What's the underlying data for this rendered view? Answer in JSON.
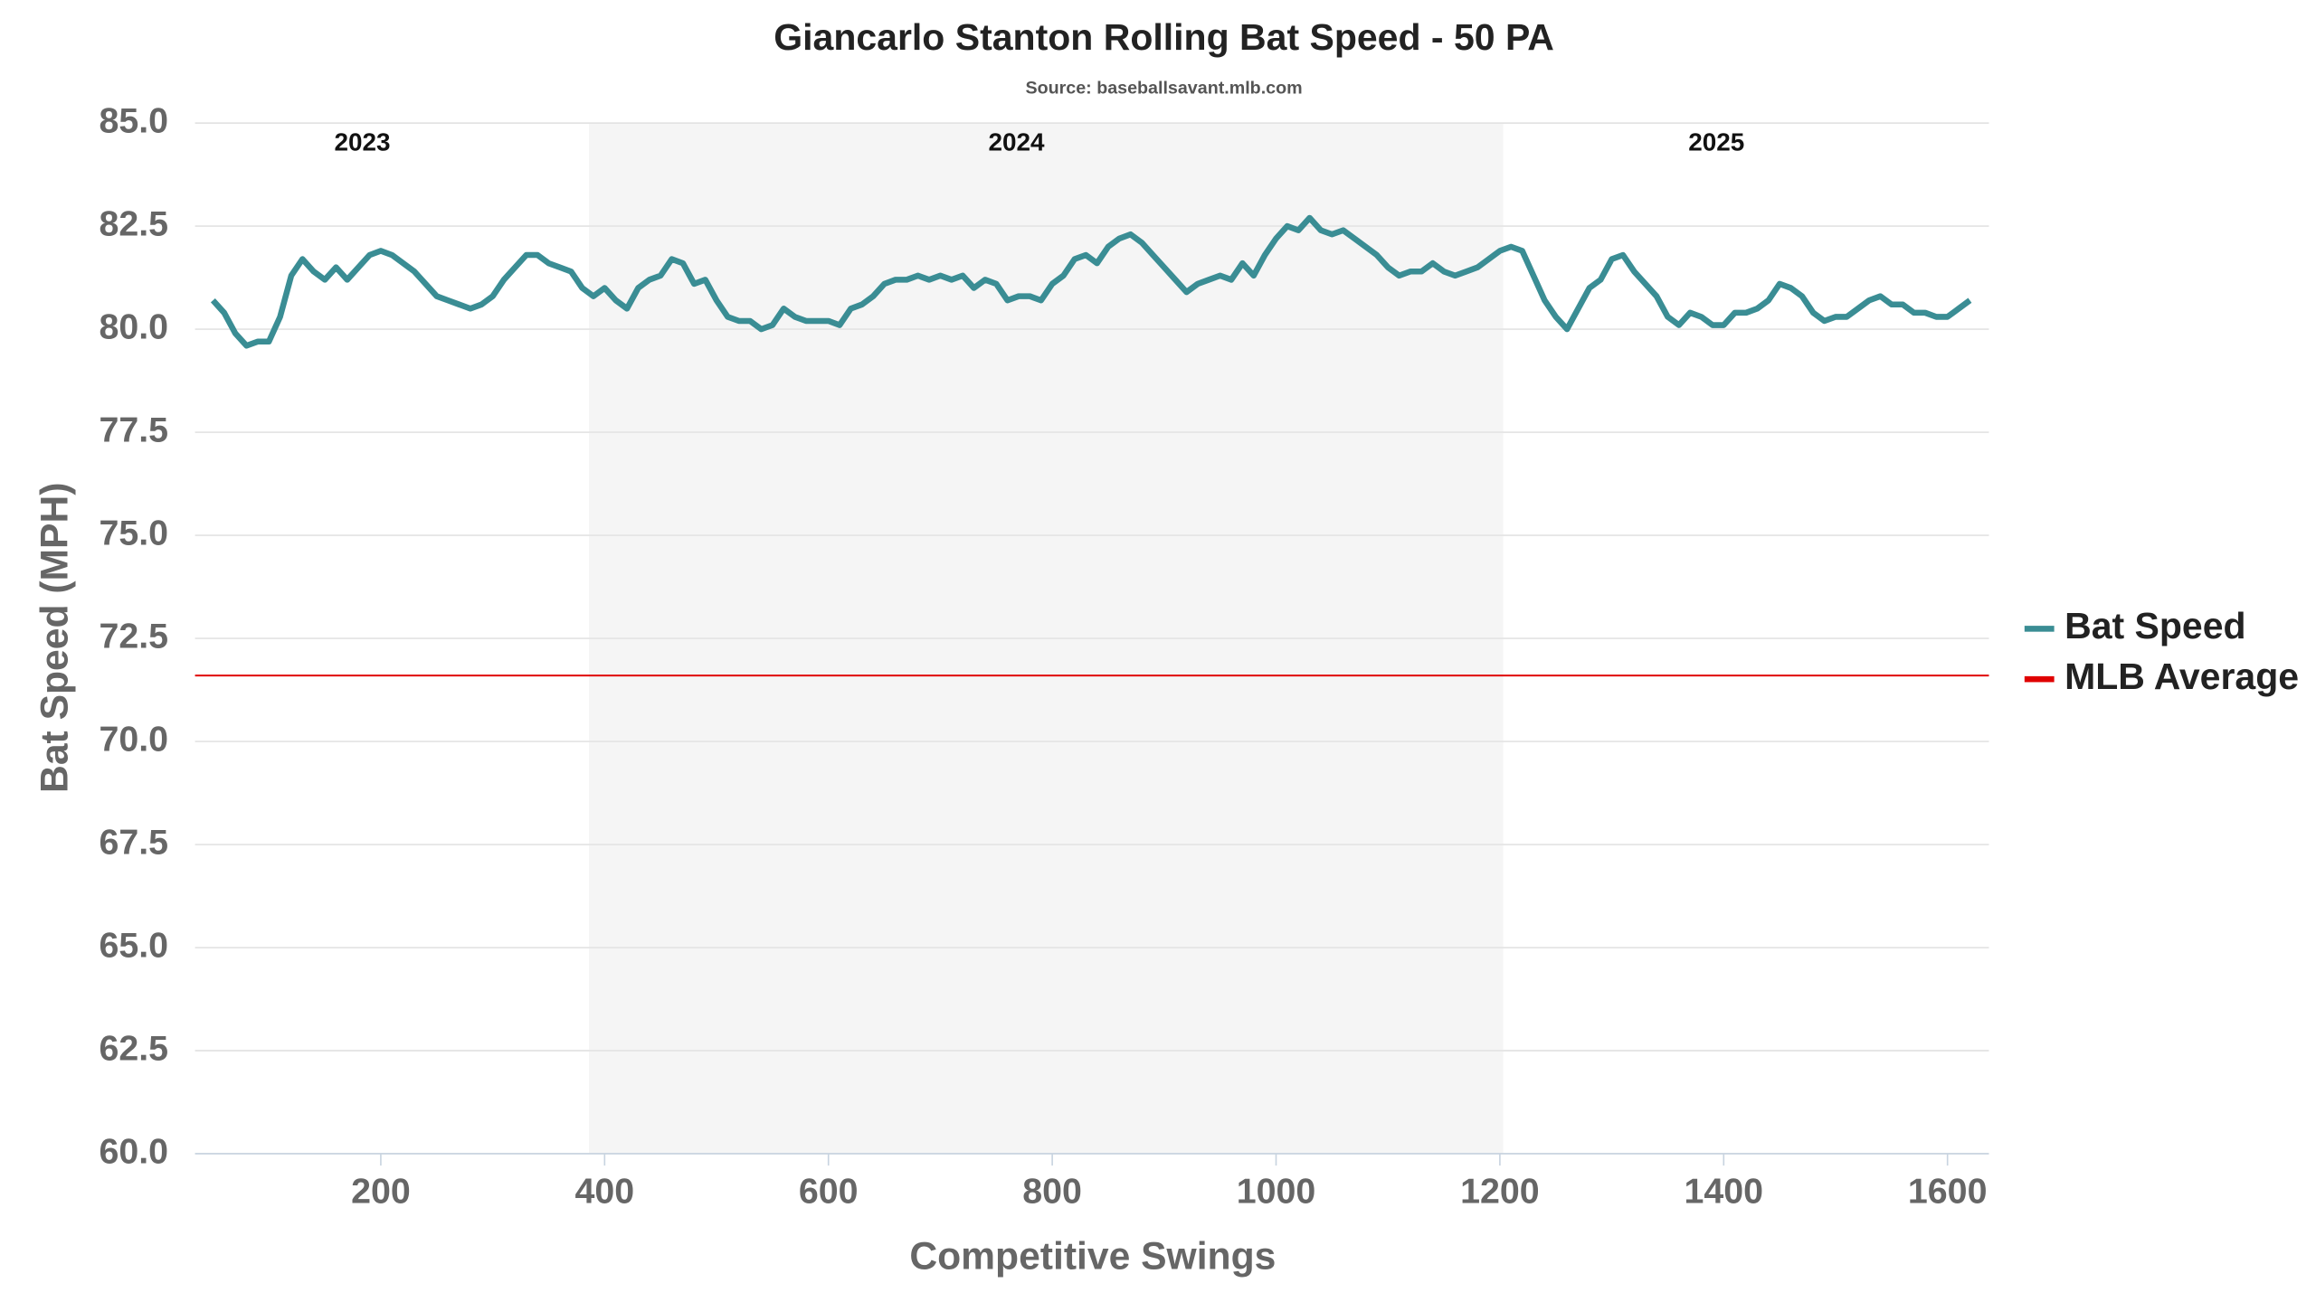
{
  "chart_data": {
    "type": "line",
    "title": "Giancarlo Stanton Rolling Bat Speed - 50 PA",
    "subtitle": "Source: baseballsavant.mlb.com",
    "x_label": "Competitive Swings",
    "y_label": "Bat Speed (MPH)",
    "xlim": [
      34,
      1637
    ],
    "ylim": [
      60,
      85
    ],
    "xticks": [
      200,
      400,
      600,
      800,
      1000,
      1200,
      1400,
      1600
    ],
    "yticks": [
      {
        "value": 60,
        "label": "60.0"
      },
      {
        "value": 62.5,
        "label": "62.5"
      },
      {
        "value": 65,
        "label": "65.0"
      },
      {
        "value": 67.5,
        "label": "67.5"
      },
      {
        "value": 70,
        "label": "70.0"
      },
      {
        "value": 72.5,
        "label": "72.5"
      },
      {
        "value": 75,
        "label": "75.0"
      },
      {
        "value": 77.5,
        "label": "77.5"
      },
      {
        "value": 80,
        "label": "80.0"
      },
      {
        "value": 82.5,
        "label": "82.5"
      },
      {
        "value": 85,
        "label": "85.0"
      }
    ],
    "grid": true,
    "legend": "right",
    "seasons": [
      {
        "label": "2023",
        "range": [
          34,
          386
        ],
        "shaded": false
      },
      {
        "label": "2024",
        "range": [
          386,
          1203
        ],
        "shaded": true
      },
      {
        "label": "2025",
        "range": [
          1203,
          1637
        ],
        "shaded": false
      }
    ],
    "x": [
      50,
      60,
      70,
      80,
      90,
      100,
      110,
      120,
      130,
      140,
      150,
      160,
      170,
      180,
      190,
      200,
      210,
      220,
      230,
      240,
      250,
      260,
      270,
      280,
      290,
      300,
      310,
      320,
      330,
      340,
      350,
      360,
      370,
      380,
      390,
      400,
      410,
      420,
      430,
      440,
      450,
      460,
      470,
      480,
      490,
      500,
      510,
      520,
      530,
      540,
      550,
      560,
      570,
      580,
      590,
      600,
      610,
      620,
      630,
      640,
      650,
      660,
      670,
      680,
      690,
      700,
      710,
      720,
      730,
      740,
      750,
      760,
      770,
      780,
      790,
      800,
      810,
      820,
      830,
      840,
      850,
      860,
      870,
      880,
      890,
      900,
      910,
      920,
      930,
      940,
      950,
      960,
      970,
      980,
      990,
      1000,
      1010,
      1020,
      1030,
      1040,
      1050,
      1060,
      1070,
      1080,
      1090,
      1100,
      1110,
      1120,
      1130,
      1140,
      1150,
      1160,
      1170,
      1180,
      1190,
      1200,
      1210,
      1220,
      1230,
      1240,
      1250,
      1260,
      1270,
      1280,
      1290,
      1300,
      1310,
      1320,
      1330,
      1340,
      1350,
      1360,
      1370,
      1380,
      1390,
      1400,
      1410,
      1420,
      1430,
      1440,
      1450,
      1460,
      1470,
      1480,
      1490,
      1500,
      1510,
      1520,
      1530,
      1540,
      1550,
      1560,
      1570,
      1580,
      1590,
      1600,
      1610,
      1620
    ],
    "series": [
      {
        "name": "Bat Speed",
        "color": "#3a8d94",
        "values": [
          80.7,
          80.4,
          79.9,
          79.6,
          79.7,
          79.7,
          80.3,
          81.3,
          81.7,
          81.4,
          81.2,
          81.5,
          81.2,
          81.5,
          81.8,
          81.9,
          81.8,
          81.6,
          81.4,
          81.1,
          80.8,
          80.7,
          80.6,
          80.5,
          80.6,
          80.8,
          81.2,
          81.5,
          81.8,
          81.8,
          81.6,
          81.5,
          81.4,
          81.0,
          80.8,
          81.0,
          80.7,
          80.5,
          81.0,
          81.2,
          81.3,
          81.7,
          81.6,
          81.1,
          81.2,
          80.7,
          80.3,
          80.2,
          80.2,
          80.0,
          80.1,
          80.5,
          80.3,
          80.2,
          80.2,
          80.2,
          80.1,
          80.5,
          80.6,
          80.8,
          81.1,
          81.2,
          81.2,
          81.3,
          81.2,
          81.3,
          81.2,
          81.3,
          81.0,
          81.2,
          81.1,
          80.7,
          80.8,
          80.8,
          80.7,
          81.1,
          81.3,
          81.7,
          81.8,
          81.6,
          82.0,
          82.2,
          82.3,
          82.1,
          81.8,
          81.5,
          81.2,
          80.9,
          81.1,
          81.2,
          81.3,
          81.2,
          81.6,
          81.3,
          81.8,
          82.2,
          82.5,
          82.4,
          82.7,
          82.4,
          82.3,
          82.4,
          82.2,
          82.0,
          81.8,
          81.5,
          81.3,
          81.4,
          81.4,
          81.6,
          81.4,
          81.3,
          81.4,
          81.5,
          81.7,
          81.9,
          82.0,
          81.9,
          81.3,
          80.7,
          80.3,
          80.0,
          80.5,
          81.0,
          81.2,
          81.7,
          81.8,
          81.4,
          81.1,
          80.8,
          80.3,
          80.1,
          80.4,
          80.3,
          80.1,
          80.1,
          80.4,
          80.4,
          80.5,
          80.7,
          81.1,
          81.0,
          80.8,
          80.4,
          80.2,
          80.3,
          80.3,
          80.5,
          80.7,
          80.8,
          80.6,
          80.6,
          80.4,
          80.4,
          80.3,
          80.3,
          80.5,
          80.7
        ]
      }
    ],
    "reference_lines": [
      {
        "name": "MLB Average",
        "color": "#e00000",
        "value": 71.6
      }
    ]
  }
}
